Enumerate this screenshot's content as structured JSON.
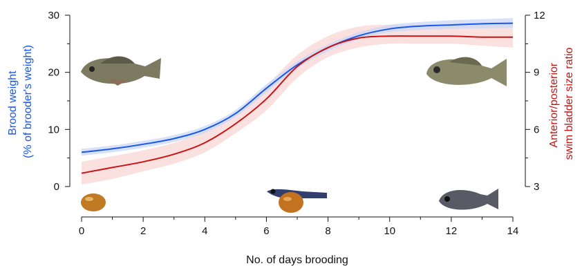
{
  "chart_data": {
    "type": "line",
    "xlabel": "No. of days brooding",
    "ylabel_left": [
      "Brood weight",
      "(% of brooder's weight)"
    ],
    "ylabel_right": [
      "Anterior/posterior",
      "swim bladder size ratio"
    ],
    "xlim": [
      0,
      14
    ],
    "ylim_left": [
      0,
      30
    ],
    "ylim_right": [
      3,
      12
    ],
    "x_ticks": [
      0,
      2,
      4,
      6,
      8,
      10,
      12,
      14
    ],
    "y_ticks_left": [
      0,
      10,
      20,
      30
    ],
    "y_ticks_right": [
      3,
      6,
      9,
      12
    ],
    "grid": false,
    "legend": "none",
    "series": [
      {
        "axis": "left",
        "color": "#1a56e8",
        "band_color": "#c9d8f6",
        "x": [
          0,
          1,
          2,
          3,
          4,
          5,
          6,
          7,
          8,
          9,
          10,
          11,
          12,
          13,
          14
        ],
        "y": [
          6.0,
          6.6,
          7.4,
          8.4,
          10.0,
          12.8,
          17.2,
          21.3,
          24.3,
          26.4,
          27.6,
          28.1,
          28.3,
          28.5,
          28.6
        ],
        "band_lower": [
          5.4,
          6.0,
          6.8,
          7.8,
          9.4,
          12.2,
          16.5,
          20.7,
          23.7,
          25.8,
          27.0,
          27.4,
          27.6,
          27.7,
          27.8
        ],
        "band_upper": [
          6.6,
          7.2,
          8.0,
          9.0,
          10.6,
          13.4,
          17.9,
          21.9,
          24.9,
          27.0,
          28.3,
          28.8,
          29.1,
          29.3,
          29.5
        ]
      },
      {
        "axis": "right",
        "color": "#c81414",
        "band_color": "#fad6d6",
        "x": [
          0,
          1,
          2,
          3,
          4,
          5,
          6,
          7,
          8,
          9,
          10,
          11,
          12,
          13,
          14
        ],
        "y": [
          3.7,
          4.0,
          4.3,
          4.7,
          5.3,
          6.3,
          7.6,
          9.3,
          10.3,
          10.8,
          10.9,
          10.9,
          10.9,
          10.85,
          10.85
        ],
        "band_lower": [
          3.1,
          3.4,
          3.8,
          4.2,
          4.8,
          5.8,
          7.0,
          8.7,
          9.8,
          10.3,
          10.5,
          10.5,
          10.5,
          10.4,
          10.3
        ],
        "band_upper": [
          4.3,
          4.6,
          4.9,
          5.3,
          5.9,
          6.9,
          8.3,
          9.9,
          10.9,
          11.4,
          11.5,
          11.5,
          11.5,
          11.55,
          11.6
        ]
      }
    ],
    "images": [
      {
        "name": "juvenile-fish-left",
        "x": 1.0,
        "y_left": 19.5
      },
      {
        "name": "juvenile-fish-right",
        "x": 12.5,
        "y_left": 19.5
      },
      {
        "name": "egg",
        "x": 0.35,
        "y_left": -3
      },
      {
        "name": "larva-with-yolk",
        "x": 7.2,
        "y_left": -2.5
      },
      {
        "name": "fry",
        "x": 12.3,
        "y_left": -2.5
      }
    ]
  }
}
